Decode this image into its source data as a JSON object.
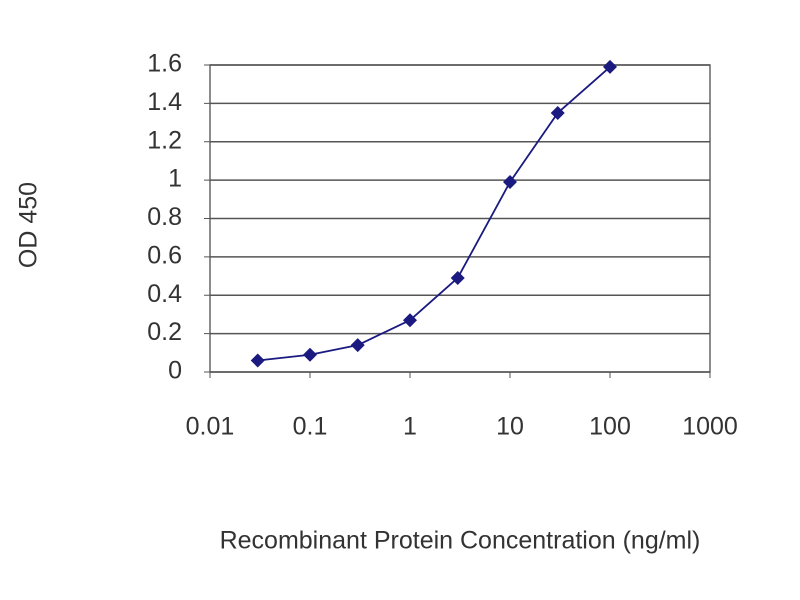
{
  "chart_data": {
    "type": "line",
    "xscale": "log",
    "grid": true,
    "ylabel": "OD 450",
    "xlabel": "Recombinant Protein Concentration (ng/ml)",
    "x": [
      0.03,
      0.1,
      0.3,
      1,
      3,
      10,
      30,
      100
    ],
    "series": [
      {
        "color": "#1a1a80",
        "values": [
          0.06,
          0.09,
          0.14,
          0.27,
          0.49,
          0.99,
          1.35,
          1.59
        ]
      }
    ],
    "xlim": [
      0.01,
      1000
    ],
    "xticks": [
      0.01,
      0.1,
      1,
      10,
      100,
      1000
    ],
    "ylim": [
      0,
      1.6
    ],
    "yticks": [
      0,
      0.2,
      0.4,
      0.6,
      0.8,
      1,
      1.2,
      1.4,
      1.6
    ]
  }
}
